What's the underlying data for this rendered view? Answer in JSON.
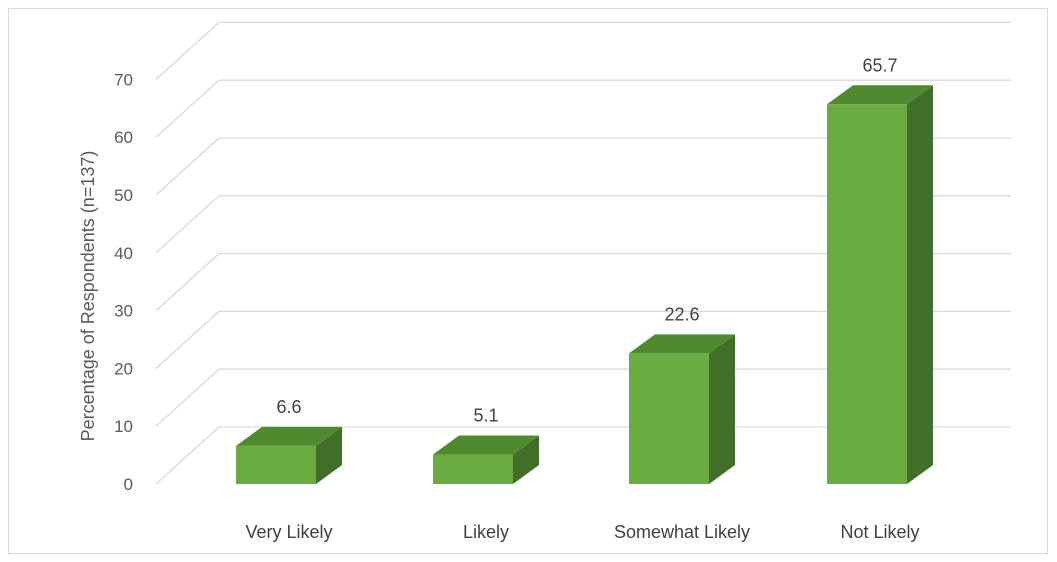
{
  "chart_data": {
    "type": "bar",
    "categories": [
      "Very Likely",
      "Likely",
      "Somewhat Likely",
      "Not Likely"
    ],
    "values": [
      6.6,
      5.1,
      22.6,
      65.7
    ],
    "data_labels": [
      "6.6",
      "5.1",
      "22.6",
      "65.7"
    ],
    "title": "",
    "xlabel": "",
    "ylabel": "Percentage of Respondents (n=137)",
    "ylim": [
      0,
      70
    ],
    "yticks": [
      "0",
      "10",
      "20",
      "30",
      "40",
      "50",
      "60",
      "70"
    ],
    "grid": true,
    "style": "3d-column",
    "colors": {
      "front": "#6aab42",
      "top": "#4f8a2e",
      "side": "#426f27",
      "grid": "#d9d9d9",
      "wall": "#d9d9d9"
    }
  }
}
